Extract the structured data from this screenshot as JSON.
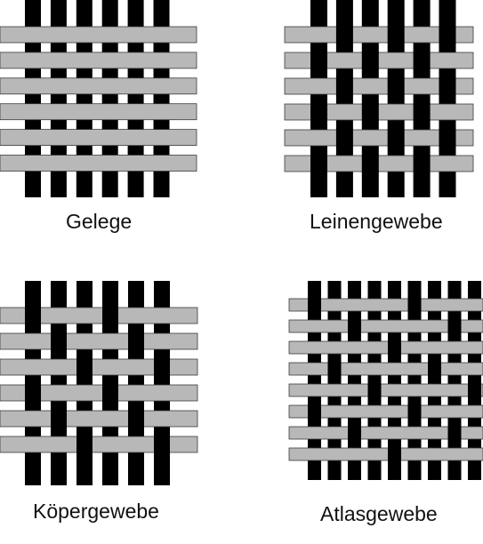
{
  "colors": {
    "warp": "#000000",
    "weft": "#b8b8b8",
    "outline": "#3a3a3a",
    "background": "#ffffff"
  },
  "panels": [
    {
      "id": "gelege",
      "label": "Gelege",
      "weave": "unbound",
      "warp_count": 6,
      "weft_count": 6,
      "repeat": 0
    },
    {
      "id": "leinen",
      "label": "Leinengewebe",
      "weave": "plain",
      "warp_count": 6,
      "weft_count": 6,
      "repeat": 2
    },
    {
      "id": "koeper",
      "label": "Köpergewebe",
      "weave": "twill",
      "warp_count": 6,
      "weft_count": 6,
      "repeat": 3
    },
    {
      "id": "atlas",
      "label": "Atlasgewebe",
      "weave": "satin",
      "warp_count": 9,
      "weft_count": 8,
      "repeat": 5
    }
  ]
}
